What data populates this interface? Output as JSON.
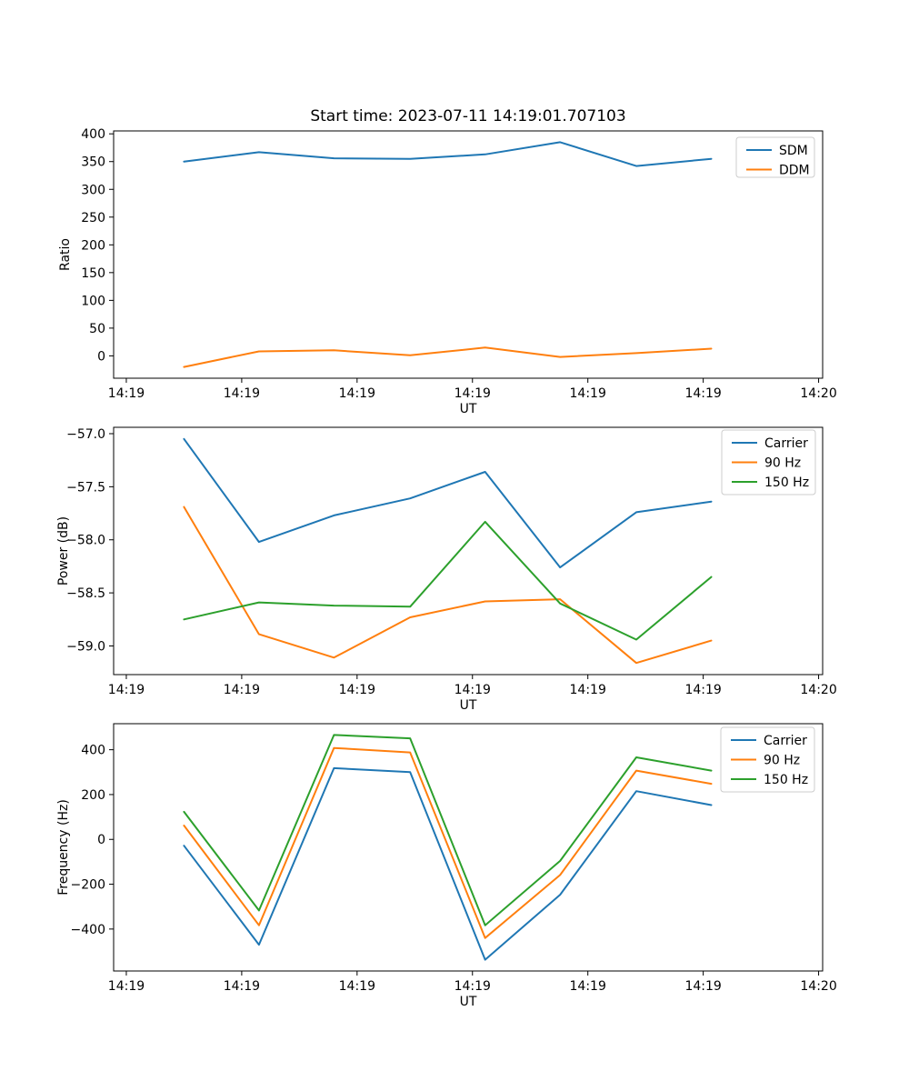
{
  "figure_title": "Start time: 2023-07-11 14:19:01.707103",
  "palette": {
    "blue": "#1f77b4",
    "orange": "#ff7f0e",
    "green": "#2ca02c"
  },
  "x_axis_note": "x values are seconds after 14:19:00 UT",
  "chart_data": [
    {
      "type": "line",
      "title": "Start time: 2023-07-11 14:19:01.707103",
      "xlabel": "UT",
      "ylabel": "Ratio",
      "x_sec": [
        5.0,
        11.5,
        18.0,
        24.6,
        31.1,
        37.6,
        44.2,
        50.7
      ],
      "series": [
        {
          "name": "SDM",
          "color": "#1f77b4",
          "values": [
            350,
            367,
            356,
            355,
            363,
            385,
            342,
            355
          ]
        },
        {
          "name": "DDM",
          "color": "#ff7f0e",
          "values": [
            -20,
            8,
            10,
            1,
            15,
            -2,
            5,
            13
          ]
        }
      ],
      "yticks": {
        "values": [
          0,
          50,
          100,
          150,
          200,
          250,
          300,
          350,
          400
        ],
        "labels": [
          "0",
          "50",
          "100",
          "150",
          "200",
          "250",
          "300",
          "350",
          "400"
        ]
      },
      "xticks": {
        "values_sec": [
          0,
          10,
          20,
          30,
          40,
          50,
          60
        ],
        "labels": [
          "14:19",
          "14:19",
          "14:19",
          "14:19",
          "14:19",
          "14:19",
          "14:20"
        ]
      },
      "ylim": [
        -40.25,
        405.25
      ],
      "xlim_sec": [
        -1.1,
        60.35
      ],
      "legend": {
        "location": "upper right",
        "entries": [
          "SDM",
          "DDM"
        ]
      },
      "grid": false
    },
    {
      "type": "line",
      "title": "",
      "xlabel": "UT",
      "ylabel": "Power (dB)",
      "x_sec": [
        5.0,
        11.5,
        18.0,
        24.6,
        31.1,
        37.6,
        44.2,
        50.7
      ],
      "series": [
        {
          "name": "Carrier",
          "color": "#1f77b4",
          "values": [
            -57.05,
            -58.02,
            -57.77,
            -57.61,
            -57.36,
            -58.26,
            -57.74,
            -57.64
          ]
        },
        {
          "name": "90 Hz",
          "color": "#ff7f0e",
          "values": [
            -57.69,
            -58.89,
            -59.11,
            -58.73,
            -58.58,
            -58.56,
            -59.16,
            -58.95
          ]
        },
        {
          "name": "150 Hz",
          "color": "#2ca02c",
          "values": [
            -58.75,
            -58.59,
            -58.62,
            -58.63,
            -57.83,
            -58.6,
            -58.94,
            -58.35
          ]
        }
      ],
      "yticks": {
        "values": [
          -59.0,
          -58.5,
          -58.0,
          -57.5,
          -57.0
        ],
        "labels": [
          "−59.0",
          "−58.5",
          "−58.0",
          "−57.5",
          "−57.0"
        ]
      },
      "xticks": {
        "values_sec": [
          0,
          10,
          20,
          30,
          40,
          50,
          60
        ],
        "labels": [
          "14:19",
          "14:19",
          "14:19",
          "14:19",
          "14:19",
          "14:19",
          "14:20"
        ]
      },
      "ylim": [
        -59.27,
        -56.94
      ],
      "xlim_sec": [
        -1.1,
        60.35
      ],
      "legend": {
        "location": "upper right",
        "entries": [
          "Carrier",
          "90 Hz",
          "150 Hz"
        ]
      },
      "grid": false
    },
    {
      "type": "line",
      "title": "",
      "xlabel": "UT",
      "ylabel": "Frequency (Hz)",
      "x_sec": [
        5.0,
        11.5,
        18.0,
        24.6,
        31.1,
        37.6,
        44.2,
        50.7
      ],
      "series": [
        {
          "name": "Carrier",
          "color": "#1f77b4",
          "values": [
            -28,
            -470,
            318,
            300,
            -537,
            -247,
            215,
            153
          ]
        },
        {
          "name": "90 Hz",
          "color": "#ff7f0e",
          "values": [
            62,
            -383,
            408,
            388,
            -440,
            -159,
            307,
            248
          ]
        },
        {
          "name": "150 Hz",
          "color": "#2ca02c",
          "values": [
            123,
            -317,
            466,
            451,
            -383,
            -96,
            366,
            307
          ]
        }
      ],
      "yticks": {
        "values": [
          -400,
          -200,
          0,
          200,
          400
        ],
        "labels": [
          "−400",
          "−200",
          "0",
          "200",
          "400"
        ]
      },
      "xticks": {
        "values_sec": [
          0,
          10,
          20,
          30,
          40,
          50,
          60
        ],
        "labels": [
          "14:19",
          "14:19",
          "14:19",
          "14:19",
          "14:19",
          "14:19",
          "14:20"
        ]
      },
      "ylim": [
        -587.15,
        516.15
      ],
      "xlim_sec": [
        -1.1,
        60.35
      ],
      "legend": {
        "location": "upper right",
        "entries": [
          "Carrier",
          "90 Hz",
          "150 Hz"
        ]
      },
      "grid": false
    }
  ]
}
